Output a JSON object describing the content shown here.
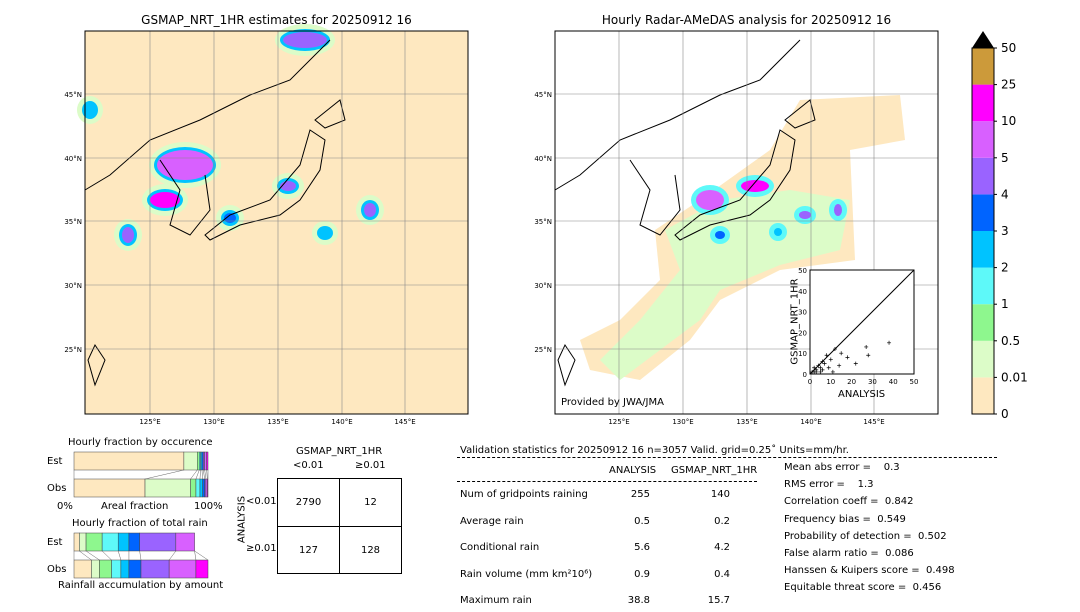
{
  "left_map": {
    "title": "GSMAP_NRT_1HR estimates for 20250912 16"
  },
  "right_map": {
    "title": "Hourly Radar-AMeDAS analysis for 20250912 16",
    "credit": "Provided by JWA/JMA"
  },
  "lat_ticks": [
    "45°N",
    "40°N",
    "35°N",
    "30°N",
    "25°N"
  ],
  "lon_ticks": [
    "125°E",
    "130°E",
    "135°E",
    "140°E",
    "145°E"
  ],
  "colorbar": {
    "levels": [
      "0",
      "0.01",
      "0.5",
      "1",
      "2",
      "3",
      "4",
      "5",
      "10",
      "25",
      "50"
    ],
    "colors": [
      "#fee8c0",
      "#dcfcc8",
      "#8ef78e",
      "#5ef9f9",
      "#00c3ff",
      "#0064ff",
      "#9a63ff",
      "#d860ff",
      "#ff00ff",
      "#cc9a3a"
    ],
    "over_color": "#000000"
  },
  "inset": {
    "xlabel": "ANALYSIS",
    "ylabel": "GSMAP_NRT_1HR",
    "ticks": [
      "0",
      "10",
      "20",
      "30",
      "40",
      "50"
    ]
  },
  "occurrence": {
    "title": "Hourly fraction by occurence",
    "est_label": "Est",
    "obs_label": "Obs",
    "xlabel": "Areal fraction",
    "x0": "0%",
    "x1": "100%",
    "est": [
      82,
      10,
      1.5,
      1,
      1,
      1,
      1,
      1.5,
      1
    ],
    "obs": [
      53,
      34,
      4,
      3,
      2,
      1.5,
      1,
      1,
      0.5
    ]
  },
  "total_rain": {
    "title": "Hourly fraction of total rain",
    "est_label": "Est",
    "obs_label": "Obs",
    "xlabel": "Rainfall accumulation by amount",
    "est": [
      4,
      5,
      12,
      12,
      8,
      8,
      27,
      14,
      0
    ],
    "obs": [
      13,
      6,
      9,
      7,
      6,
      9,
      21,
      20,
      9
    ]
  },
  "contingency": {
    "title": "GSMAP_NRT_1HR",
    "col1": "<0.01",
    "col2": "≥0.01",
    "row_axis": "ANALYSIS",
    "row1": "<0.01",
    "row2": "≥0.01",
    "cells": [
      "2790",
      "12",
      "127",
      "128"
    ]
  },
  "stats": {
    "header": "Validation statistics for 20250912 16  n=3057 Valid. grid=0.25˚ Units=mm/hr.",
    "col_analysis": "ANALYSIS",
    "col_gsmap": "GSMAP_NRT_1HR",
    "rows": [
      {
        "label": "Num of gridpoints raining",
        "a": "255",
        "g": "140"
      },
      {
        "label": "Average rain",
        "a": "0.5",
        "g": "0.2"
      },
      {
        "label": "Conditional rain",
        "a": "5.6",
        "g": "4.2"
      },
      {
        "label": "Rain volume (mm km²10⁶)",
        "a": "0.9",
        "g": "0.4"
      },
      {
        "label": "Maximum rain",
        "a": "38.8",
        "g": "15.7"
      }
    ],
    "scores": [
      "Mean abs error =    0.3",
      "RMS error =    1.3",
      "Correlation coeff =  0.842",
      "Frequency bias =  0.549",
      "Probability of detection =  0.502",
      "False alarm ratio =  0.086",
      "Hanssen & Kuipers score =  0.498",
      "Equitable threat score =  0.456"
    ]
  }
}
